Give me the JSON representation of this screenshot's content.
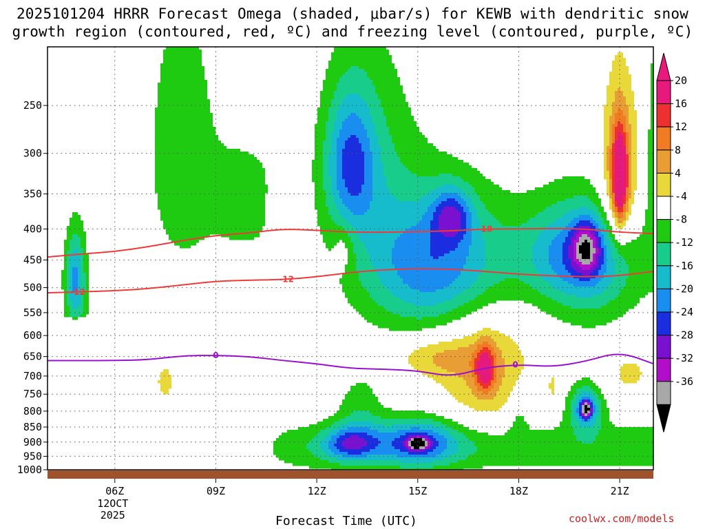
{
  "title": {
    "line1": "2025101204 HRRR Forecast Omega (shaded, μbar/s) for KEWB with dendritic snow",
    "line2": "growth region (contoured, red, ºC) and freezing level (contoured, purple, ºC)"
  },
  "credit": "coolwx.com/models",
  "chart_data": {
    "type": "time-height contour (omega shading)",
    "xlabel": "Forecast Time (UTC)",
    "x_ticks": [
      {
        "time": "06Z",
        "extra": [
          "12OCT",
          "2025"
        ]
      },
      {
        "time": "09Z"
      },
      {
        "time": "12Z"
      },
      {
        "time": "15Z"
      },
      {
        "time": "18Z"
      },
      {
        "time": "21Z"
      }
    ],
    "x_range_hours": [
      4,
      22
    ],
    "y_axis": {
      "units": "hPa",
      "range": [
        1000,
        200
      ],
      "ticks": [
        250,
        300,
        350,
        400,
        450,
        500,
        550,
        600,
        650,
        700,
        750,
        800,
        850,
        900,
        950,
        1000
      ]
    },
    "colorbar": {
      "labels": [
        "20",
        "16",
        "12",
        "8",
        "4",
        "-4",
        "-8",
        "-12",
        "-16",
        "-20",
        "-24",
        "-28",
        "-32",
        "-36"
      ],
      "bins": [
        {
          "lo": 20,
          "hi": 24,
          "color": "#e8197d"
        },
        {
          "lo": 16,
          "hi": 20,
          "color": "#ee3030"
        },
        {
          "lo": 12,
          "hi": 16,
          "color": "#f07b22"
        },
        {
          "lo": 8,
          "hi": 12,
          "color": "#e89e34"
        },
        {
          "lo": 4,
          "hi": 8,
          "color": "#e8d83a"
        },
        {
          "lo": -4,
          "hi": 4,
          "color": "#ffffff"
        },
        {
          "lo": -8,
          "hi": -4,
          "color": "#1ecb10"
        },
        {
          "lo": -12,
          "hi": -8,
          "color": "#18cc8c"
        },
        {
          "lo": -16,
          "hi": -12,
          "color": "#16bccc"
        },
        {
          "lo": -20,
          "hi": -16,
          "color": "#1a8ef0"
        },
        {
          "lo": -24,
          "hi": -20,
          "color": "#1a2ee0"
        },
        {
          "lo": -28,
          "hi": -24,
          "color": "#7a10d0"
        },
        {
          "lo": -32,
          "hi": -28,
          "color": "#b00ec8"
        },
        {
          "lo": -36,
          "hi": -32,
          "color": "#a8a8a8"
        }
      ]
    },
    "contours": [
      {
        "name": "-18 ºC isotherm",
        "label": "-18",
        "color": "#ee3a3a",
        "points": [
          [
            4,
            445
          ],
          [
            5,
            440
          ],
          [
            6,
            436
          ],
          [
            7,
            428
          ],
          [
            8,
            418
          ],
          [
            9,
            410
          ],
          [
            10,
            406
          ],
          [
            11,
            400
          ],
          [
            12,
            402
          ],
          [
            13,
            405
          ],
          [
            14,
            405
          ],
          [
            15,
            404
          ],
          [
            16,
            403
          ],
          [
            17,
            400
          ],
          [
            18,
            400
          ],
          [
            19,
            399
          ],
          [
            20,
            400
          ],
          [
            21,
            405
          ],
          [
            22,
            407
          ]
        ]
      },
      {
        "name": "-12 ºC isotherm",
        "label": "-12",
        "color": "#ee3a3a",
        "points": [
          [
            4,
            510
          ],
          [
            5,
            508
          ],
          [
            6,
            506
          ],
          [
            7,
            502
          ],
          [
            8,
            495
          ],
          [
            9,
            488
          ],
          [
            10,
            486
          ],
          [
            11,
            485
          ],
          [
            12,
            480
          ],
          [
            13,
            472
          ],
          [
            14,
            467
          ],
          [
            15,
            465
          ],
          [
            16,
            466
          ],
          [
            17,
            470
          ],
          [
            18,
            475
          ],
          [
            19,
            478
          ],
          [
            20,
            480
          ],
          [
            21,
            478
          ],
          [
            22,
            470
          ]
        ]
      },
      {
        "name": "0 ºC freezing level",
        "label": "0",
        "color": "#9a10cc",
        "points": [
          [
            4,
            660
          ],
          [
            5,
            660
          ],
          [
            6,
            660
          ],
          [
            7,
            658
          ],
          [
            8,
            648
          ],
          [
            9,
            647
          ],
          [
            10,
            650
          ],
          [
            11,
            660
          ],
          [
            12,
            668
          ],
          [
            13,
            680
          ],
          [
            14,
            682
          ],
          [
            15,
            686
          ],
          [
            16,
            702
          ],
          [
            17,
            678
          ],
          [
            18,
            670
          ],
          [
            19,
            676
          ],
          [
            20,
            662
          ],
          [
            21,
            638
          ],
          [
            22,
            668
          ]
        ]
      }
    ],
    "omega_blobs": [
      {
        "t": 13.0,
        "p": 310,
        "rt": 0.75,
        "rp": 80,
        "v": -16
      },
      {
        "t": 15.4,
        "p": 470,
        "rt": 2.0,
        "rp": 120,
        "v": -13
      },
      {
        "t": 16.0,
        "p": 380,
        "rt": 0.6,
        "rp": 40,
        "v": -15
      },
      {
        "t": 19.8,
        "p": 440,
        "rt": 1.6,
        "rp": 80,
        "v": -15
      },
      {
        "t": 20.0,
        "p": 430,
        "rt": 0.4,
        "rp": 40,
        "v": -18
      },
      {
        "t": 4.8,
        "p": 480,
        "rt": 0.3,
        "rp": 80,
        "v": -12
      },
      {
        "t": 15.0,
        "p": 900,
        "rt": 1.2,
        "rp": 80,
        "v": -17
      },
      {
        "t": 13.0,
        "p": 905,
        "rt": 0.8,
        "rp": 60,
        "v": -17
      },
      {
        "t": 15.0,
        "p": 905,
        "rt": 0.3,
        "rp": 20,
        "v": -24
      },
      {
        "t": 20.0,
        "p": 790,
        "rt": 0.5,
        "rp": 70,
        "v": -18
      },
      {
        "t": 20.0,
        "p": 795,
        "rt": 0.15,
        "rp": 25,
        "v": -24
      },
      {
        "t": 17.0,
        "p": 680,
        "rt": 1.4,
        "rp": 160,
        "v": 9
      },
      {
        "t": 17.0,
        "p": 680,
        "rt": 0.3,
        "rp": 60,
        "v": 17
      },
      {
        "t": 15.5,
        "p": 650,
        "rt": 1.2,
        "rp": 50,
        "v": 7
      },
      {
        "t": 21.0,
        "p": 330,
        "rt": 0.55,
        "rp": 110,
        "v": 14
      },
      {
        "t": 21.0,
        "p": 330,
        "rt": 0.22,
        "rp": 60,
        "v": 21
      },
      {
        "t": 11.0,
        "p": 370,
        "rt": 0.4,
        "rp": 40,
        "v": 5
      },
      {
        "t": 12.8,
        "p": 430,
        "rt": 0.3,
        "rp": 40,
        "v": 5
      },
      {
        "t": 7.5,
        "p": 715,
        "rt": 0.4,
        "rp": 70,
        "v": 5
      },
      {
        "t": 21.3,
        "p": 690,
        "rt": 0.8,
        "rp": 70,
        "v": 5
      },
      {
        "t": 19.0,
        "p": 730,
        "rt": 0.1,
        "rp": 40,
        "v": 5
      }
    ],
    "descent_bands": [
      {
        "name": "lower moist green band",
        "v": -7
      },
      {
        "name": "upper-left green plume",
        "v": -6
      }
    ]
  }
}
